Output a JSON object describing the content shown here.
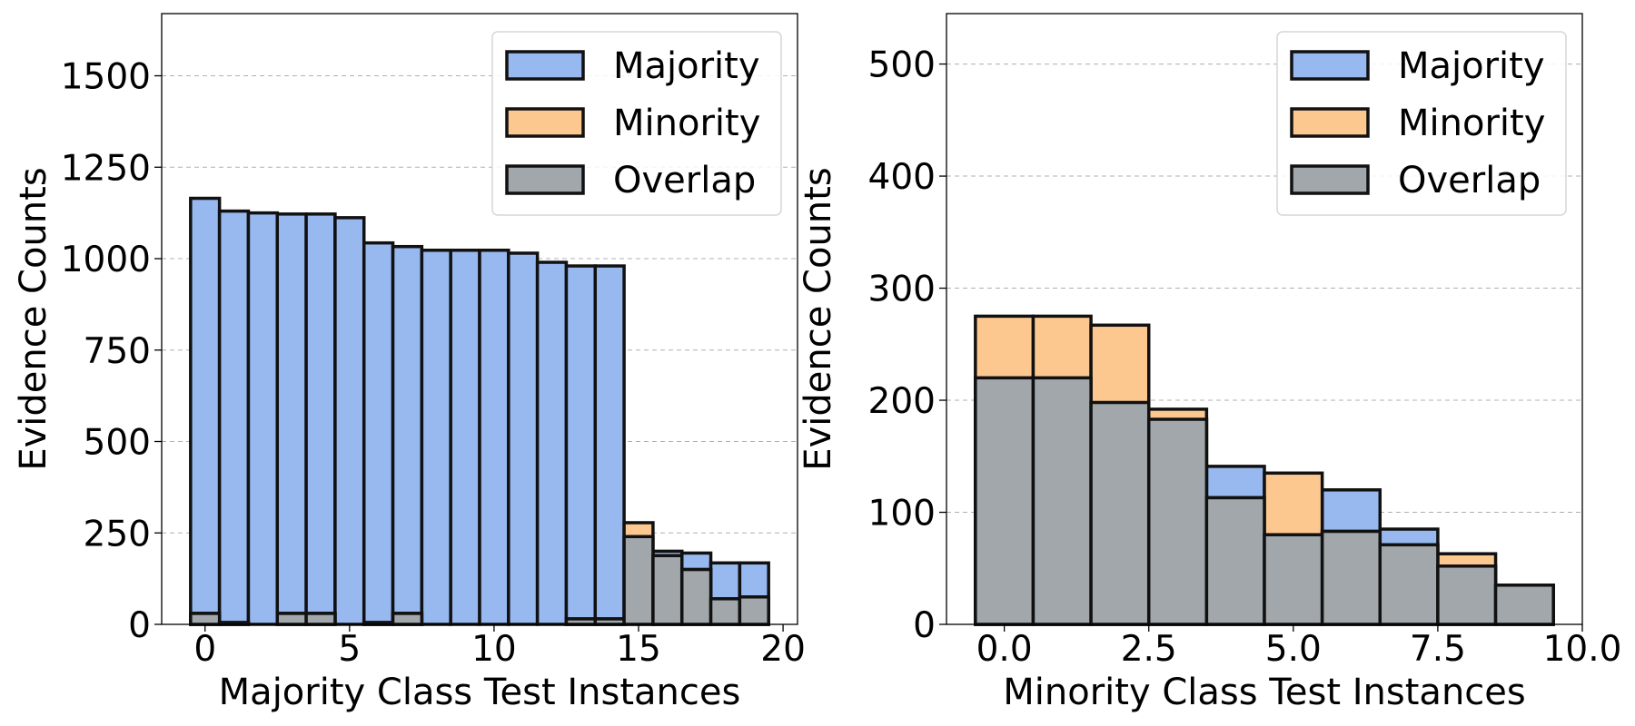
{
  "chart_data": [
    {
      "type": "bar",
      "title": "",
      "xlabel": "Majority Class Test Instances",
      "ylabel": "Evidence Counts",
      "xlim": [
        -1.5,
        20.5
      ],
      "ylim": [
        0,
        1670
      ],
      "xticks": [
        0,
        5,
        10,
        15,
        20
      ],
      "yticks": [
        0,
        250,
        500,
        750,
        1000,
        1250,
        1500
      ],
      "xtick_labels": [
        "0",
        "5",
        "10",
        "15",
        "20"
      ],
      "ytick_labels": [
        "0",
        "250",
        "500",
        "750",
        "1000",
        "1250",
        "1500"
      ],
      "grid": "y",
      "legend_position": "top-right",
      "bin_width": 1,
      "bins": [
        0,
        1,
        2,
        3,
        4,
        5,
        6,
        7,
        8,
        9,
        10,
        11,
        12,
        13,
        14,
        15,
        16,
        17,
        18,
        19
      ],
      "series": [
        {
          "name": "Majority",
          "color": "#98b8f0",
          "values": [
            1165,
            1130,
            1125,
            1122,
            1122,
            1112,
            1043,
            1033,
            1023,
            1023,
            1023,
            1015,
            990,
            980,
            980,
            0,
            200,
            195,
            168,
            168
          ]
        },
        {
          "name": "Minority",
          "color": "#fdc890",
          "values": [
            30,
            5,
            0,
            30,
            30,
            0,
            5,
            30,
            0,
            0,
            0,
            0,
            0,
            15,
            15,
            278,
            188,
            150,
            70,
            75
          ]
        },
        {
          "name": "Overlap",
          "color": "#a1a7ab",
          "values": [
            30,
            5,
            0,
            30,
            30,
            0,
            5,
            30,
            0,
            0,
            0,
            0,
            0,
            15,
            15,
            240,
            188,
            150,
            70,
            75
          ]
        }
      ]
    },
    {
      "type": "bar",
      "title": "",
      "xlabel": "Minority Class Test Instances",
      "ylabel": "Evidence Counts",
      "xlim": [
        -1.0,
        10.0
      ],
      "ylim": [
        0,
        545
      ],
      "xticks": [
        0,
        2.5,
        5,
        7.5,
        10
      ],
      "yticks": [
        0,
        100,
        200,
        300,
        400,
        500
      ],
      "xtick_labels": [
        "0.0",
        "2.5",
        "5.0",
        "7.5",
        "10.0"
      ],
      "ytick_labels": [
        "0",
        "100",
        "200",
        "300",
        "400",
        "500"
      ],
      "grid": "y",
      "legend_position": "top-right",
      "bin_width": 1,
      "bins": [
        0,
        1,
        2,
        3,
        4,
        5,
        6,
        7,
        8,
        9
      ],
      "series": [
        {
          "name": "Majority",
          "color": "#98b8f0",
          "values": [
            220,
            220,
            198,
            183,
            141,
            80,
            120,
            85,
            52,
            35
          ]
        },
        {
          "name": "Minority",
          "color": "#fdc890",
          "values": [
            275,
            275,
            267,
            192,
            113,
            135,
            83,
            71,
            63,
            35
          ]
        },
        {
          "name": "Overlap",
          "color": "#a1a7ab",
          "values": [
            220,
            220,
            198,
            183,
            113,
            80,
            83,
            71,
            52,
            35
          ]
        }
      ]
    }
  ]
}
